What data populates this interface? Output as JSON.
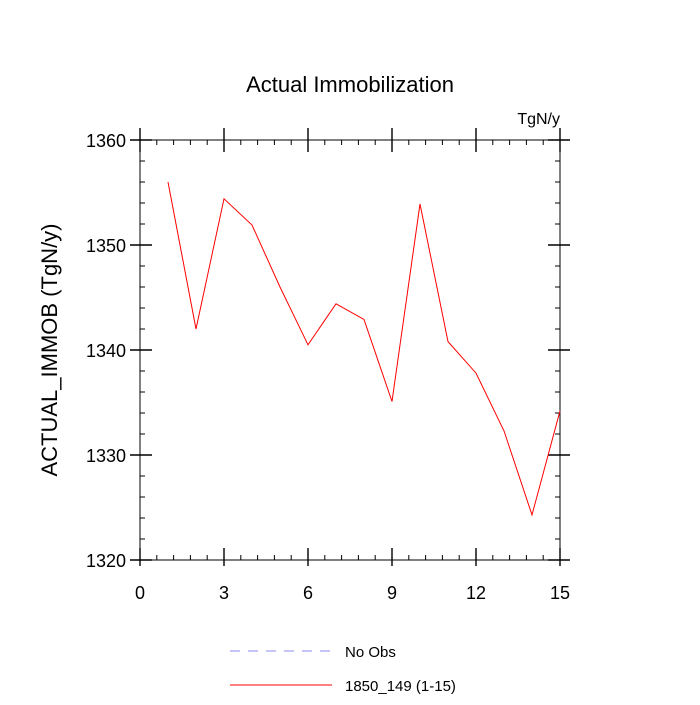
{
  "chart_data": {
    "type": "line",
    "title": "Actual Immobilization",
    "units_label": "TgN/y",
    "xlabel": "",
    "ylabel": "ACTUAL_IMMOB  (TgN/y)",
    "xlim": [
      0,
      15
    ],
    "ylim": [
      1320,
      1360
    ],
    "xticks": [
      0,
      3,
      6,
      9,
      12,
      15
    ],
    "yticks": [
      1320,
      1330,
      1340,
      1350,
      1360
    ],
    "xtick_labels": [
      "0",
      "3",
      "6",
      "9",
      "12",
      "15"
    ],
    "ytick_labels": [
      "1320",
      "1330",
      "1340",
      "1350",
      "1360"
    ],
    "series": [
      {
        "name": "1850_149 (1-15)",
        "color": "#ff0000",
        "x": [
          1,
          2,
          3,
          4,
          5,
          6,
          7,
          8,
          9,
          10,
          11,
          12,
          13,
          14,
          15
        ],
        "values": [
          1356.0,
          1342.0,
          1354.4,
          1351.9,
          1346.0,
          1340.5,
          1344.4,
          1342.9,
          1335.1,
          1353.9,
          1340.8,
          1337.8,
          1332.3,
          1324.3,
          1334.2
        ]
      }
    ],
    "legend": [
      {
        "label": "No Obs",
        "color": "#8888ee",
        "style": "dashed"
      },
      {
        "label": "1850_149 (1-15)",
        "color": "#ff0000",
        "style": "solid"
      }
    ],
    "legend_position": "bottom-center"
  }
}
